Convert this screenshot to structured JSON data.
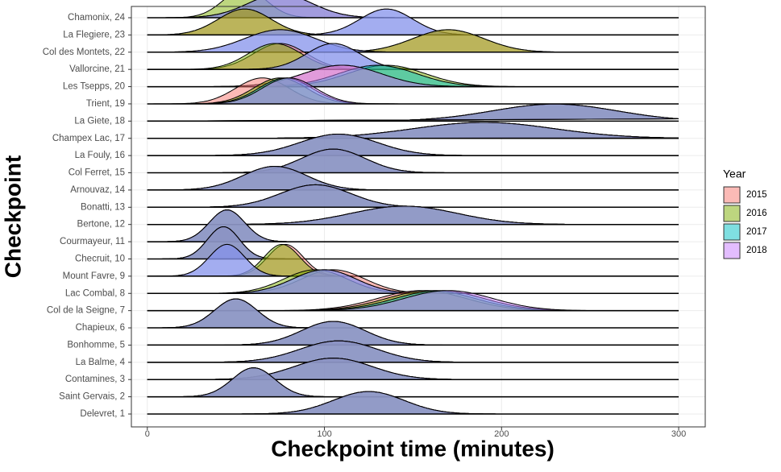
{
  "chart_data": {
    "type": "ridgeline",
    "x_label": "Checkpoint time (minutes)",
    "y_label": "Checkpoint",
    "legend_title": "Year",
    "categories": [
      "Delevret, 1",
      "Saint Gervais, 2",
      "Contamines, 3",
      "La Balme, 4",
      "Bonhomme, 5",
      "Chapieux, 6",
      "Col de la Seigne, 7",
      "Lac Combal, 8",
      "Mount Favre, 9",
      "Checruit, 10",
      "Courmayeur, 11",
      "Bertone, 12",
      "Bonatti, 13",
      "Arnouvaz, 14",
      "Col Ferret, 15",
      "La Fouly, 16",
      "Champex Lac, 17",
      "La Giete, 18",
      "Trient, 19",
      "Les Tsepps, 20",
      "Vallorcine, 21",
      "Col des Montets, 22",
      "La Flegiere, 23",
      "Chamonix, 24"
    ],
    "series": [
      {
        "name": "2015",
        "color": "#F8766D",
        "values": [
          125,
          60,
          105,
          108,
          105,
          50,
          155,
          105,
          78,
          43,
          45,
          145,
          95,
          72,
          105,
          108,
          190,
          230,
          65,
          110,
          75,
          170,
          55,
          75
        ],
        "widths": [
          20,
          12,
          22,
          22,
          18,
          12,
          25,
          18,
          10,
          9,
          10,
          30,
          20,
          18,
          18,
          22,
          40,
          35,
          15,
          22,
          15,
          20,
          15,
          18
        ]
      },
      {
        "name": "2016",
        "color": "#7CAE00",
        "values": [
          125,
          60,
          105,
          108,
          105,
          50,
          160,
          95,
          76,
          43,
          45,
          145,
          95,
          72,
          105,
          108,
          190,
          230,
          75,
          135,
          72,
          170,
          55,
          55
        ],
        "widths": [
          20,
          12,
          22,
          22,
          18,
          12,
          25,
          18,
          10,
          9,
          10,
          30,
          20,
          18,
          18,
          22,
          40,
          35,
          15,
          22,
          15,
          20,
          15,
          12
        ]
      },
      {
        "name": "2017",
        "color": "#00BFC4",
        "values": [
          125,
          60,
          105,
          108,
          105,
          50,
          165,
          100,
          45,
          43,
          45,
          145,
          95,
          72,
          105,
          108,
          190,
          230,
          78,
          130,
          105,
          75,
          135,
          75
        ],
        "widths": [
          20,
          12,
          22,
          22,
          18,
          12,
          25,
          18,
          10,
          9,
          10,
          30,
          20,
          18,
          18,
          22,
          40,
          35,
          15,
          22,
          15,
          20,
          15,
          18
        ]
      },
      {
        "name": "2018",
        "color": "#C77CFF",
        "values": [
          125,
          60,
          105,
          108,
          105,
          50,
          170,
          100,
          45,
          43,
          45,
          145,
          95,
          72,
          105,
          108,
          190,
          230,
          80,
          110,
          105,
          75,
          135,
          75
        ],
        "widths": [
          20,
          12,
          22,
          22,
          18,
          12,
          25,
          18,
          10,
          9,
          10,
          30,
          20,
          18,
          18,
          22,
          40,
          35,
          15,
          22,
          15,
          20,
          15,
          18
        ]
      }
    ],
    "xlim": [
      -9,
      315
    ],
    "xticks": [
      0,
      100,
      200,
      300
    ],
    "grid": true
  }
}
